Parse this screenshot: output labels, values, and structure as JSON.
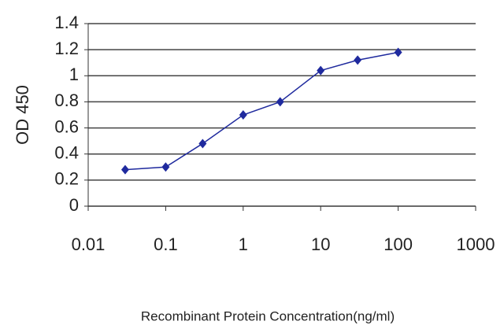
{
  "chart_data": {
    "type": "line",
    "x_label": "Recombinant Protein Concentration(ng/ml)",
    "y_label": "OD 450",
    "x_scale": "log",
    "x": [
      0.03,
      0.1,
      0.3,
      1,
      3,
      10,
      30,
      100
    ],
    "series": [
      {
        "name": "OD 450",
        "color": "#1f2a9e",
        "values": [
          0.28,
          0.3,
          0.48,
          0.7,
          0.8,
          1.04,
          1.12,
          1.18
        ]
      }
    ],
    "xlim": [
      0.01,
      1000
    ],
    "xticks": [
      0.01,
      0.1,
      1,
      10,
      100,
      1000
    ],
    "ylim": [
      0,
      1.4
    ],
    "yticks": [
      0,
      0.2,
      0.4,
      0.6,
      0.8,
      1,
      1.2,
      1.4
    ],
    "grid": true
  }
}
